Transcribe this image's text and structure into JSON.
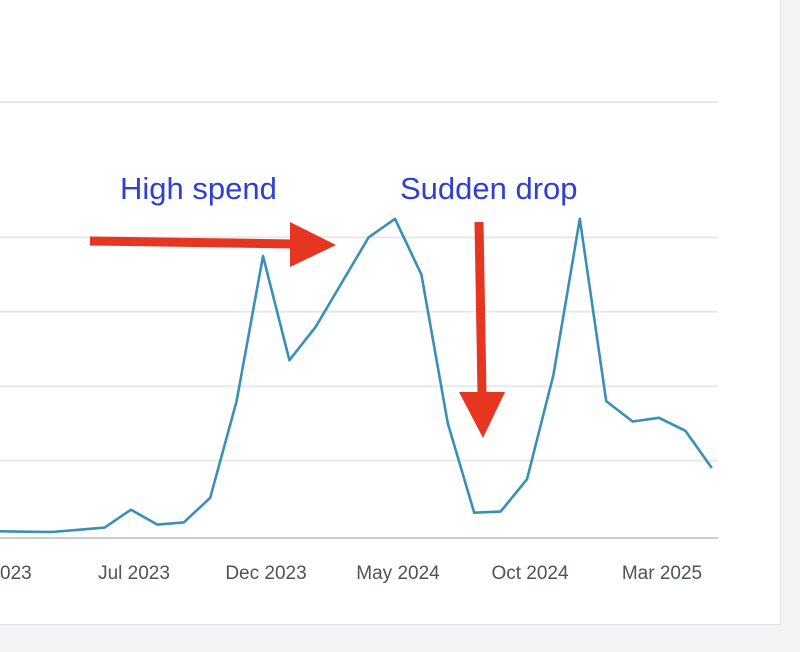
{
  "chart_data": {
    "type": "line",
    "title": "",
    "xlabel": "",
    "ylabel": "",
    "grid": true,
    "series": [
      {
        "color": "#3a8fb7",
        "values": [
          {
            "x": "2023-02",
            "y": 1.0
          },
          {
            "x": "2023-03",
            "y": 0.9
          },
          {
            "x": "2023-04",
            "y": 0.8
          },
          {
            "x": "2023-05",
            "y": 1.4
          },
          {
            "x": "2023-06",
            "y": 2.0
          },
          {
            "x": "2023-07",
            "y": 6.8
          },
          {
            "x": "2023-08",
            "y": 2.8
          },
          {
            "x": "2023-09",
            "y": 3.4
          },
          {
            "x": "2023-10",
            "y": 10.0
          },
          {
            "x": "2023-11",
            "y": 36.0
          },
          {
            "x": "2023-12",
            "y": 75.0
          },
          {
            "x": "2024-01",
            "y": 47.0
          },
          {
            "x": "2024-02",
            "y": 56.0
          },
          {
            "x": "2024-03",
            "y": 68.0
          },
          {
            "x": "2024-04",
            "y": 80.0
          },
          {
            "x": "2024-05",
            "y": 85.0
          },
          {
            "x": "2024-06",
            "y": 70.0
          },
          {
            "x": "2024-07",
            "y": 30.0
          },
          {
            "x": "2024-08",
            "y": 6.0
          },
          {
            "x": "2024-09",
            "y": 6.3
          },
          {
            "x": "2024-10",
            "y": 15.0
          },
          {
            "x": "2024-11",
            "y": 43.0
          },
          {
            "x": "2024-12",
            "y": 85.0
          },
          {
            "x": "2025-01",
            "y": 36.0
          },
          {
            "x": "2025-02",
            "y": 30.5
          },
          {
            "x": "2025-03",
            "y": 31.5
          },
          {
            "x": "2025-04",
            "y": 28.0
          },
          {
            "x": "2025-05",
            "y": 18.0
          }
        ]
      }
    ],
    "x_ticks": [
      {
        "label": "023",
        "x": "2023-02"
      },
      {
        "label": "Jul 2023",
        "x": "2023-07"
      },
      {
        "label": "Dec 2023",
        "x": "2023-12"
      },
      {
        "label": "May 2024",
        "x": "2024-05"
      },
      {
        "label": "Oct 2024",
        "x": "2024-10"
      },
      {
        "label": "Mar 2025",
        "x": "2025-03"
      }
    ],
    "ylim": [
      0,
      100
    ],
    "gridlines_y": [
      20,
      40,
      60,
      80,
      100
    ],
    "annotations": [
      {
        "text": "High spend",
        "color": "#2f3fd6"
      },
      {
        "text": "Sudden drop",
        "color": "#2f3fd6"
      }
    ],
    "arrow_color": "#e63521"
  }
}
